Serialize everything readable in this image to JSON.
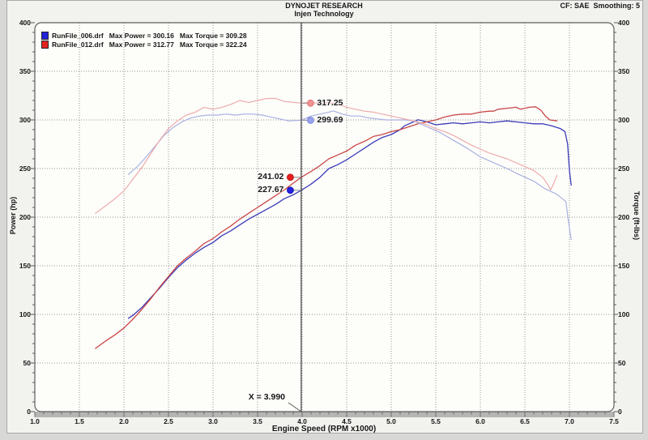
{
  "window": {
    "title_line1": "DYNOJET RESEARCH",
    "title_line2": "Injen Technology",
    "settings_label": "CF: SAE  Smoothing: 5"
  },
  "legend": {
    "runs": [
      {
        "file": "RunFile_006.drf",
        "max_power_label": "Max Power = 300.16",
        "max_torque_label": "Max Torque = 309.28",
        "color": "#2323d6"
      },
      {
        "file": "RunFile_012.drf",
        "max_power_label": "Max Power = 312.77",
        "max_torque_label": "Max Torque = 322.24",
        "color": "#e42222"
      }
    ]
  },
  "chart_data": {
    "type": "line",
    "title": "DYNOJET RESEARCH - Injen Technology",
    "xlabel": "Engine Speed (RPM x1000)",
    "ylabel_left": "Power (hp)",
    "ylabel_right": "Torque (ft-lbs)",
    "xlim": [
      1.0,
      7.5
    ],
    "ylim": [
      0,
      400
    ],
    "x_ticks": [
      1.0,
      1.5,
      2.0,
      2.5,
      3.0,
      3.5,
      4.0,
      4.5,
      5.0,
      5.5,
      6.0,
      6.5,
      7.0,
      7.5
    ],
    "y_ticks": [
      0,
      50,
      100,
      150,
      200,
      250,
      300,
      350,
      400
    ],
    "grid": true,
    "legend_position": "top-left",
    "series": [
      {
        "name": "RunFile_006.drf Power (hp)",
        "color": "#3b3bb8",
        "width": 1.3,
        "points": [
          [
            2.05,
            96
          ],
          [
            2.1,
            99
          ],
          [
            2.2,
            107
          ],
          [
            2.3,
            117
          ],
          [
            2.4,
            127
          ],
          [
            2.5,
            138
          ],
          [
            2.6,
            148
          ],
          [
            2.7,
            156
          ],
          [
            2.8,
            163
          ],
          [
            2.9,
            169
          ],
          [
            3.0,
            174
          ],
          [
            3.1,
            181
          ],
          [
            3.2,
            186
          ],
          [
            3.3,
            192
          ],
          [
            3.4,
            198
          ],
          [
            3.5,
            203
          ],
          [
            3.6,
            208
          ],
          [
            3.7,
            213
          ],
          [
            3.8,
            219
          ],
          [
            3.9,
            223
          ],
          [
            3.99,
            227.7
          ],
          [
            4.1,
            234
          ],
          [
            4.2,
            241
          ],
          [
            4.3,
            250
          ],
          [
            4.4,
            254
          ],
          [
            4.5,
            259
          ],
          [
            4.6,
            265
          ],
          [
            4.7,
            271
          ],
          [
            4.8,
            277
          ],
          [
            4.9,
            282
          ],
          [
            5.0,
            285
          ],
          [
            5.1,
            290
          ],
          [
            5.15,
            294
          ],
          [
            5.25,
            298
          ],
          [
            5.3,
            300.2
          ],
          [
            5.4,
            298
          ],
          [
            5.5,
            295
          ],
          [
            5.6,
            296
          ],
          [
            5.7,
            297
          ],
          [
            5.8,
            296
          ],
          [
            5.9,
            297
          ],
          [
            6.0,
            298
          ],
          [
            6.1,
            297
          ],
          [
            6.2,
            298
          ],
          [
            6.3,
            299
          ],
          [
            6.4,
            298
          ],
          [
            6.5,
            297
          ],
          [
            6.6,
            296
          ],
          [
            6.7,
            296
          ],
          [
            6.8,
            294
          ],
          [
            6.9,
            291
          ],
          [
            6.95,
            288
          ],
          [
            6.98,
            275
          ],
          [
            7.0,
            248
          ],
          [
            7.02,
            233
          ]
        ]
      },
      {
        "name": "RunFile_012.drf Power (hp)",
        "color": "#c94747",
        "width": 1.3,
        "points": [
          [
            1.68,
            65
          ],
          [
            1.8,
            73
          ],
          [
            1.9,
            79
          ],
          [
            2.0,
            86
          ],
          [
            2.1,
            95
          ],
          [
            2.2,
            105
          ],
          [
            2.3,
            116
          ],
          [
            2.4,
            128
          ],
          [
            2.5,
            139
          ],
          [
            2.6,
            150
          ],
          [
            2.7,
            158
          ],
          [
            2.8,
            165
          ],
          [
            2.9,
            173
          ],
          [
            3.0,
            178
          ],
          [
            3.1,
            185
          ],
          [
            3.2,
            191
          ],
          [
            3.3,
            198
          ],
          [
            3.4,
            204
          ],
          [
            3.5,
            210
          ],
          [
            3.6,
            216
          ],
          [
            3.7,
            222
          ],
          [
            3.8,
            228
          ],
          [
            3.9,
            235
          ],
          [
            3.99,
            241
          ],
          [
            4.1,
            247
          ],
          [
            4.2,
            253
          ],
          [
            4.3,
            260
          ],
          [
            4.4,
            264
          ],
          [
            4.5,
            268
          ],
          [
            4.6,
            274
          ],
          [
            4.7,
            278
          ],
          [
            4.8,
            283
          ],
          [
            4.9,
            285
          ],
          [
            5.0,
            288
          ],
          [
            5.1,
            290
          ],
          [
            5.2,
            293
          ],
          [
            5.3,
            296
          ],
          [
            5.4,
            298
          ],
          [
            5.5,
            300
          ],
          [
            5.6,
            303
          ],
          [
            5.7,
            305
          ],
          [
            5.8,
            306
          ],
          [
            5.9,
            306
          ],
          [
            6.0,
            308
          ],
          [
            6.1,
            309
          ],
          [
            6.15,
            309
          ],
          [
            6.2,
            311
          ],
          [
            6.3,
            312
          ],
          [
            6.4,
            313
          ],
          [
            6.45,
            311
          ],
          [
            6.55,
            313
          ],
          [
            6.62,
            313.5
          ],
          [
            6.68,
            310
          ],
          [
            6.73,
            304
          ],
          [
            6.78,
            300
          ],
          [
            6.86,
            299
          ]
        ]
      },
      {
        "name": "RunFile_006.drf Torque (ft-lbs)",
        "color": "#a9b0e2",
        "width": 1.2,
        "points": [
          [
            2.05,
            244
          ],
          [
            2.15,
            252
          ],
          [
            2.25,
            262
          ],
          [
            2.35,
            273
          ],
          [
            2.45,
            284
          ],
          [
            2.55,
            292
          ],
          [
            2.65,
            298
          ],
          [
            2.75,
            302
          ],
          [
            2.85,
            304
          ],
          [
            2.95,
            305
          ],
          [
            3.05,
            305
          ],
          [
            3.15,
            306
          ],
          [
            3.25,
            305
          ],
          [
            3.35,
            306
          ],
          [
            3.45,
            306
          ],
          [
            3.55,
            305
          ],
          [
            3.65,
            303
          ],
          [
            3.75,
            301
          ],
          [
            3.85,
            299
          ],
          [
            3.99,
            299.7
          ],
          [
            4.1,
            304
          ],
          [
            4.2,
            306
          ],
          [
            4.3,
            308
          ],
          [
            4.35,
            309.3
          ],
          [
            4.45,
            306
          ],
          [
            4.55,
            304
          ],
          [
            4.65,
            304
          ],
          [
            4.75,
            302
          ],
          [
            4.85,
            301
          ],
          [
            4.95,
            300
          ],
          [
            5.05,
            300
          ],
          [
            5.15,
            300
          ],
          [
            5.25,
            299
          ],
          [
            5.35,
            295
          ],
          [
            5.45,
            291
          ],
          [
            5.55,
            287
          ],
          [
            5.7,
            279
          ],
          [
            5.85,
            271
          ],
          [
            6.0,
            262
          ],
          [
            6.15,
            256
          ],
          [
            6.3,
            250
          ],
          [
            6.43,
            244
          ],
          [
            6.6,
            237
          ],
          [
            6.73,
            229
          ],
          [
            6.85,
            224
          ],
          [
            6.92,
            219
          ],
          [
            6.96,
            216
          ],
          [
            6.99,
            195
          ],
          [
            7.02,
            177
          ]
        ]
      },
      {
        "name": "RunFile_012.drf Torque (ft-lbs)",
        "color": "#edabab",
        "width": 1.2,
        "points": [
          [
            1.68,
            204
          ],
          [
            1.8,
            212
          ],
          [
            1.9,
            219
          ],
          [
            2.0,
            227
          ],
          [
            2.1,
            239
          ],
          [
            2.2,
            251
          ],
          [
            2.3,
            265
          ],
          [
            2.4,
            279
          ],
          [
            2.5,
            291
          ],
          [
            2.6,
            299
          ],
          [
            2.7,
            305
          ],
          [
            2.8,
            308
          ],
          [
            2.9,
            313
          ],
          [
            3.0,
            311
          ],
          [
            3.1,
            313
          ],
          [
            3.2,
            316
          ],
          [
            3.3,
            320
          ],
          [
            3.4,
            318
          ],
          [
            3.5,
            320
          ],
          [
            3.6,
            322
          ],
          [
            3.7,
            322.2
          ],
          [
            3.8,
            319
          ],
          [
            3.9,
            318
          ],
          [
            3.99,
            317.3
          ],
          [
            4.1,
            318
          ],
          [
            4.2,
            317
          ],
          [
            4.3,
            318
          ],
          [
            4.4,
            316
          ],
          [
            4.5,
            313
          ],
          [
            4.6,
            311
          ],
          [
            4.7,
            309
          ],
          [
            4.8,
            308
          ],
          [
            4.9,
            306
          ],
          [
            5.0,
            304
          ],
          [
            5.1,
            302
          ],
          [
            5.2,
            300
          ],
          [
            5.3,
            298
          ],
          [
            5.4,
            295
          ],
          [
            5.5,
            291
          ],
          [
            5.6,
            288
          ],
          [
            5.7,
            284
          ],
          [
            5.8,
            279
          ],
          [
            5.9,
            274
          ],
          [
            6.0,
            270
          ],
          [
            6.1,
            266
          ],
          [
            6.2,
            263
          ],
          [
            6.3,
            260
          ],
          [
            6.4,
            256
          ],
          [
            6.5,
            252
          ],
          [
            6.6,
            248
          ],
          [
            6.7,
            241
          ],
          [
            6.76,
            233
          ],
          [
            6.79,
            228
          ],
          [
            6.83,
            236
          ],
          [
            6.86,
            243
          ]
        ]
      }
    ],
    "cursor": {
      "x": 3.99,
      "label": "X = 3.990",
      "markers": [
        {
          "text": "317.25",
          "value": 317.25,
          "color": "#ef9292",
          "edge": "#e06d6d",
          "side": "right"
        },
        {
          "text": "299.69",
          "value": 299.69,
          "color": "#97a1ea",
          "edge": "#7480d6",
          "side": "right"
        },
        {
          "text": "241.02",
          "value": 241.02,
          "color": "#e51f1f",
          "edge": "#b01212",
          "side": "left"
        },
        {
          "text": "227.67",
          "value": 227.67,
          "color": "#2222e0",
          "edge": "#1414ad",
          "side": "left"
        }
      ]
    }
  },
  "colors": {
    "plot_bg": "#fdfdfa",
    "page_bg": "#f2f2ef",
    "frame": "#5e5e5e",
    "grid": "#929292",
    "cursor_line": "#3d3d3d",
    "axis_band": "#b5b5b3",
    "tick": "#5a5a5a"
  }
}
